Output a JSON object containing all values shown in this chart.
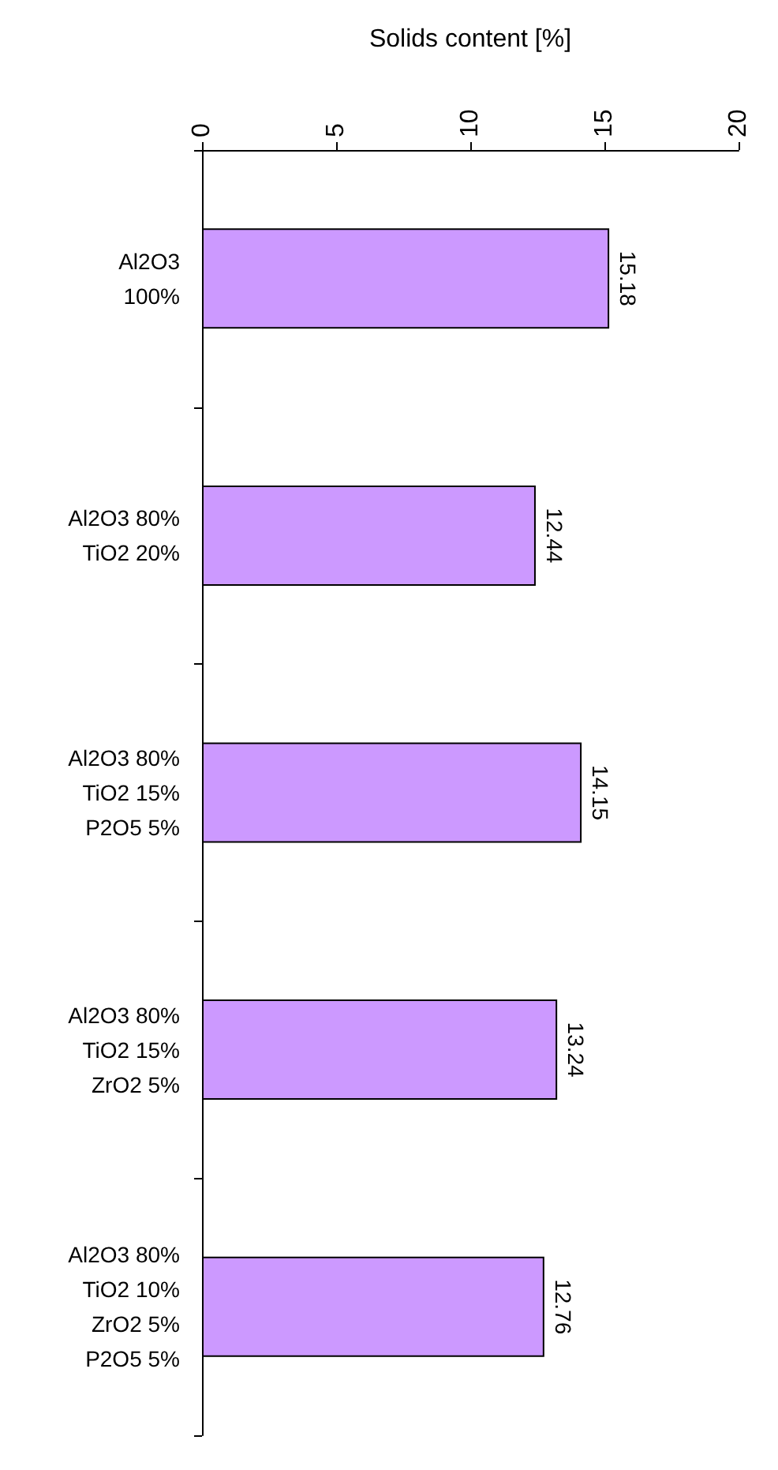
{
  "chart_data": {
    "type": "bar",
    "orientation": "horizontal",
    "xlabel": "Solids content [%]",
    "categories": [
      "Al2O3\n100%",
      "Al2O3 80%\nTiO2 20%",
      "Al2O3 80%\nTiO2 15%\nP2O5 5%",
      "Al2O3 80%\nTiO2 15%\nZrO2 5%",
      "Al2O3 80%\nTiO2 10%\nZrO2 5%\nP2O5 5%"
    ],
    "values": [
      15.18,
      12.44,
      14.15,
      13.24,
      12.76
    ],
    "color": "#cc99ff",
    "xlim": [
      0,
      20
    ],
    "xticks": [
      0,
      5,
      10,
      15,
      20
    ],
    "data_labels": true
  }
}
